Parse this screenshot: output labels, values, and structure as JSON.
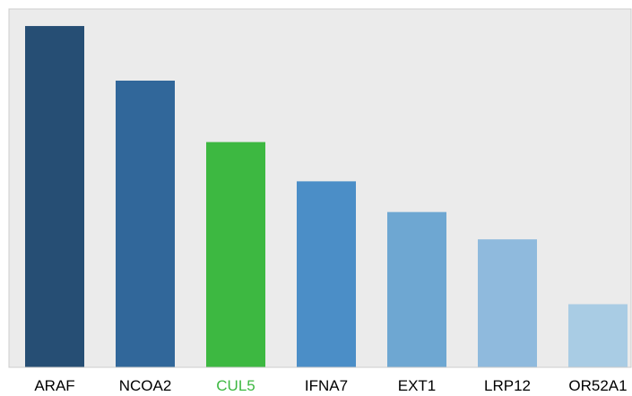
{
  "chart_data": {
    "type": "bar",
    "title": "",
    "xlabel": "",
    "ylabel": "",
    "categories": [
      "ARAF",
      "NCOA2",
      "CUL5",
      "IFNA7",
      "EXT1",
      "LRP12",
      "OR52A1"
    ],
    "values": [
      100,
      84,
      66,
      54.5,
      45.5,
      37.5,
      18.5
    ],
    "ylim": [
      0,
      105
    ],
    "grid": false,
    "highlight": "CUL5",
    "colors": {
      "bars": [
        "#264e74",
        "#31679a",
        "#3db841",
        "#4b8ec7",
        "#6ea7d2",
        "#8fbadd",
        "#a9cce4"
      ],
      "labels": [
        "#000000",
        "#000000",
        "#3db841",
        "#000000",
        "#000000",
        "#000000",
        "#000000"
      ],
      "plot_background": "#ebebeb",
      "frame": "#cccccc"
    }
  }
}
